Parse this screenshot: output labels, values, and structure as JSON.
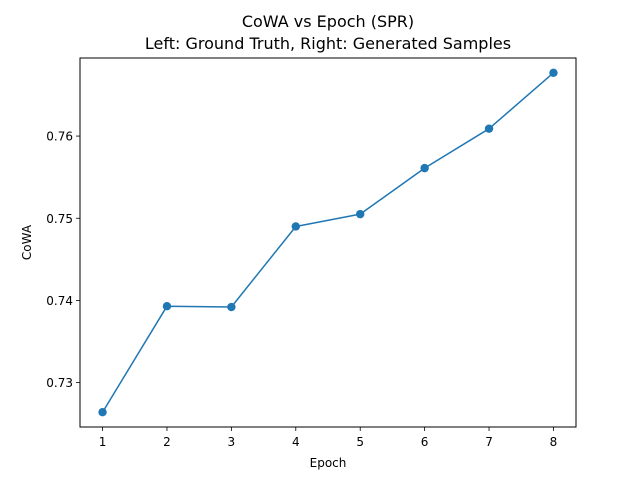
{
  "chart_data": {
    "type": "line",
    "title": "CoWA vs Epoch (SPR)",
    "subtitle": "Left: Ground Truth, Right: Generated Samples",
    "xlabel": "Epoch",
    "ylabel": "CoWA",
    "x": [
      1,
      2,
      3,
      4,
      5,
      6,
      7,
      8
    ],
    "x_ticks": [
      "1",
      "2",
      "3",
      "4",
      "5",
      "6",
      "7",
      "8"
    ],
    "y_ticks": [
      "0.73",
      "0.74",
      "0.75",
      "0.76"
    ],
    "y_tick_values": [
      0.73,
      0.74,
      0.75,
      0.76
    ],
    "xlim": [
      0.65,
      8.35
    ],
    "ylim": [
      0.7246,
      0.7695
    ],
    "grid": false,
    "series": [
      {
        "color": "#1f77b4",
        "marker": "circle",
        "values": [
          0.7264,
          0.7393,
          0.7392,
          0.749,
          0.7505,
          0.7561,
          0.7609,
          0.7677
        ]
      }
    ]
  }
}
